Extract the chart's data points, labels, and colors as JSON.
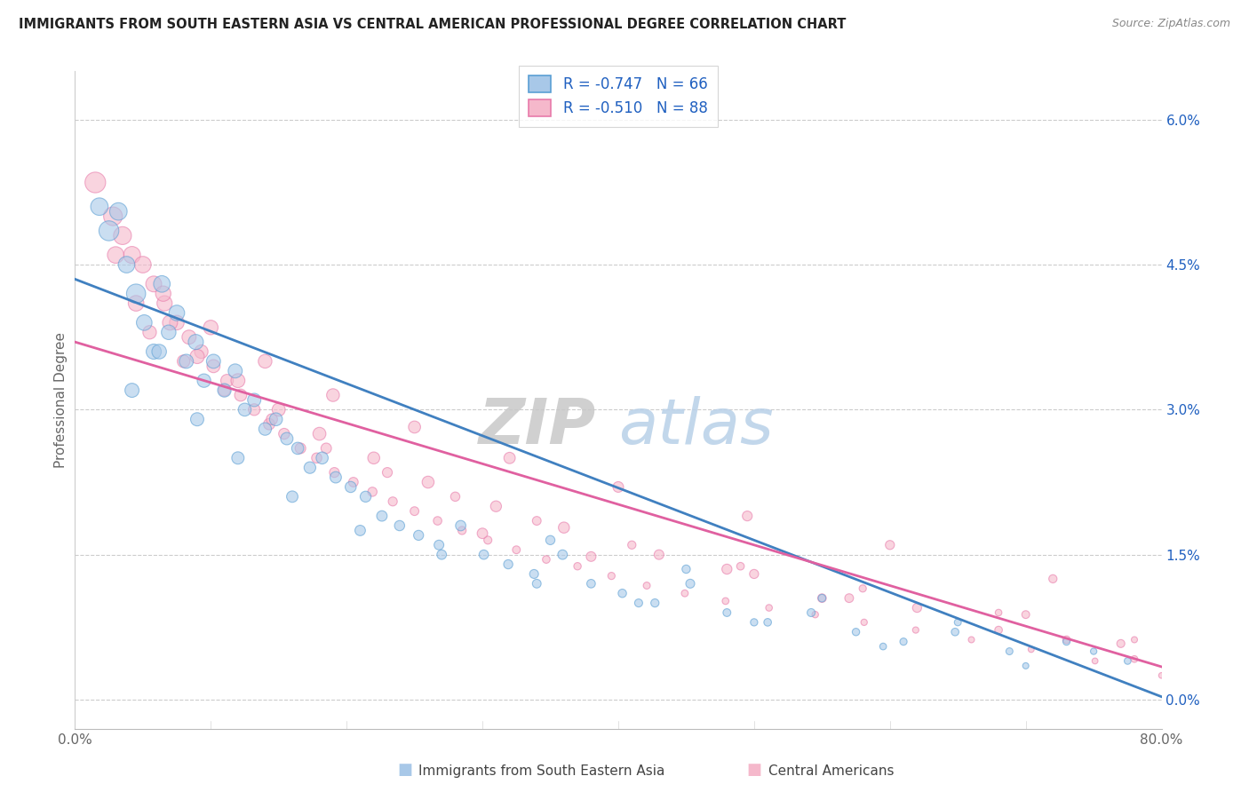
{
  "title": "IMMIGRANTS FROM SOUTH EASTERN ASIA VS CENTRAL AMERICAN PROFESSIONAL DEGREE CORRELATION CHART",
  "source": "Source: ZipAtlas.com",
  "ylabel": "Professional Degree",
  "xlim": [
    0.0,
    80.0
  ],
  "ylim": [
    -0.3,
    6.5
  ],
  "y_tick_vals": [
    0.0,
    1.5,
    3.0,
    4.5,
    6.0
  ],
  "color_blue_fill": "#a8c8e8",
  "color_blue_edge": "#5a9fd4",
  "color_pink_fill": "#f5b8cb",
  "color_pink_edge": "#e87aaa",
  "color_blue_line": "#4080c0",
  "color_pink_line": "#e060a0",
  "color_text_blue": "#2060c0",
  "color_grid": "#cccccc",
  "legend_r_blue": "-0.747",
  "legend_n_blue": "66",
  "legend_r_pink": "-0.510",
  "legend_n_pink": "88",
  "legend_label_blue": "Immigrants from South Eastern Asia",
  "legend_label_pink": "Central Americans",
  "watermark_zip": "ZIP",
  "watermark_atlas": "atlas",
  "blue_intercept": 4.35,
  "blue_slope": -0.054,
  "pink_intercept": 3.7,
  "pink_slope": -0.042,
  "blue_x": [
    1.8,
    2.5,
    3.2,
    3.8,
    4.5,
    5.1,
    5.8,
    6.4,
    6.9,
    7.5,
    8.2,
    8.9,
    9.5,
    10.2,
    11.0,
    11.8,
    12.5,
    13.2,
    14.0,
    14.8,
    15.6,
    16.4,
    17.3,
    18.2,
    19.2,
    20.3,
    21.4,
    22.6,
    23.9,
    25.3,
    26.8,
    28.4,
    30.1,
    31.9,
    33.8,
    35.9,
    38.0,
    40.3,
    42.7,
    45.3,
    48.0,
    51.0,
    54.2,
    57.5,
    61.0,
    64.8,
    68.8,
    73.0,
    77.5,
    4.2,
    6.2,
    9.0,
    12.0,
    16.0,
    21.0,
    27.0,
    34.0,
    41.5,
    50.0,
    59.5,
    70.0,
    35.0,
    45.0,
    55.0,
    65.0,
    75.0
  ],
  "blue_y": [
    5.1,
    4.85,
    5.05,
    4.5,
    4.2,
    3.9,
    3.6,
    4.3,
    3.8,
    4.0,
    3.5,
    3.7,
    3.3,
    3.5,
    3.2,
    3.4,
    3.0,
    3.1,
    2.8,
    2.9,
    2.7,
    2.6,
    2.4,
    2.5,
    2.3,
    2.2,
    2.1,
    1.9,
    1.8,
    1.7,
    1.6,
    1.8,
    1.5,
    1.4,
    1.3,
    1.5,
    1.2,
    1.1,
    1.0,
    1.2,
    0.9,
    0.8,
    0.9,
    0.7,
    0.6,
    0.7,
    0.5,
    0.6,
    0.4,
    3.2,
    3.6,
    2.9,
    2.5,
    2.1,
    1.75,
    1.5,
    1.2,
    1.0,
    0.8,
    0.55,
    0.35,
    1.65,
    1.35,
    1.05,
    0.8,
    0.5
  ],
  "blue_s": [
    200,
    260,
    200,
    180,
    240,
    160,
    150,
    180,
    140,
    160,
    130,
    150,
    120,
    130,
    120,
    130,
    110,
    115,
    105,
    110,
    100,
    95,
    90,
    95,
    85,
    80,
    78,
    72,
    68,
    65,
    62,
    70,
    58,
    55,
    52,
    60,
    48,
    46,
    44,
    52,
    40,
    38,
    42,
    36,
    34,
    38,
    32,
    34,
    30,
    130,
    140,
    115,
    100,
    85,
    72,
    60,
    50,
    42,
    35,
    30,
    25,
    55,
    45,
    38,
    32,
    27
  ],
  "pink_x": [
    1.5,
    2.8,
    3.5,
    4.2,
    5.0,
    5.8,
    6.6,
    7.5,
    8.4,
    9.3,
    10.2,
    11.2,
    12.2,
    13.2,
    14.3,
    15.4,
    16.6,
    17.8,
    19.1,
    20.5,
    21.9,
    23.4,
    25.0,
    26.7,
    28.5,
    30.4,
    32.5,
    34.7,
    37.0,
    39.5,
    42.1,
    44.9,
    47.9,
    51.1,
    54.5,
    58.1,
    61.9,
    66.0,
    70.4,
    75.1,
    80.0,
    5.5,
    8.0,
    11.0,
    14.5,
    18.5,
    23.0,
    28.0,
    34.0,
    41.0,
    49.0,
    58.0,
    68.0,
    78.0,
    3.0,
    6.5,
    10.0,
    14.0,
    19.0,
    25.0,
    32.0,
    40.0,
    49.5,
    60.0,
    72.0,
    7.0,
    12.0,
    18.0,
    26.0,
    36.0,
    48.0,
    62.0,
    77.0,
    4.5,
    9.0,
    15.0,
    22.0,
    31.0,
    43.0,
    57.0,
    73.0,
    30.0,
    50.0,
    70.0,
    38.0,
    55.0,
    68.0,
    78.0
  ],
  "pink_y": [
    5.35,
    5.0,
    4.8,
    4.6,
    4.5,
    4.3,
    4.1,
    3.9,
    3.75,
    3.6,
    3.45,
    3.3,
    3.15,
    3.0,
    2.85,
    2.75,
    2.6,
    2.5,
    2.35,
    2.25,
    2.15,
    2.05,
    1.95,
    1.85,
    1.75,
    1.65,
    1.55,
    1.45,
    1.38,
    1.28,
    1.18,
    1.1,
    1.02,
    0.95,
    0.88,
    0.8,
    0.72,
    0.62,
    0.52,
    0.4,
    0.25,
    3.8,
    3.5,
    3.2,
    2.9,
    2.6,
    2.35,
    2.1,
    1.85,
    1.6,
    1.38,
    1.15,
    0.9,
    0.62,
    4.6,
    4.2,
    3.85,
    3.5,
    3.15,
    2.82,
    2.5,
    2.2,
    1.9,
    1.6,
    1.25,
    3.9,
    3.3,
    2.75,
    2.25,
    1.78,
    1.35,
    0.95,
    0.58,
    4.1,
    3.55,
    3.0,
    2.5,
    2.0,
    1.5,
    1.05,
    0.62,
    1.72,
    1.3,
    0.88,
    1.48,
    1.05,
    0.72,
    0.42
  ],
  "pink_s": [
    280,
    230,
    210,
    190,
    180,
    165,
    152,
    140,
    130,
    120,
    112,
    104,
    97,
    90,
    84,
    78,
    74,
    68,
    64,
    60,
    56,
    53,
    50,
    47,
    44,
    42,
    40,
    38,
    36,
    34,
    32,
    31,
    30,
    29,
    28,
    27,
    26,
    25,
    24,
    23,
    22,
    120,
    105,
    92,
    82,
    72,
    64,
    56,
    50,
    44,
    38,
    34,
    29,
    25,
    180,
    155,
    138,
    122,
    108,
    96,
    84,
    74,
    64,
    54,
    44,
    148,
    128,
    110,
    94,
    80,
    66,
    54,
    42,
    160,
    134,
    112,
    94,
    78,
    62,
    50,
    38,
    72,
    54,
    40,
    62,
    48,
    38,
    30
  ]
}
